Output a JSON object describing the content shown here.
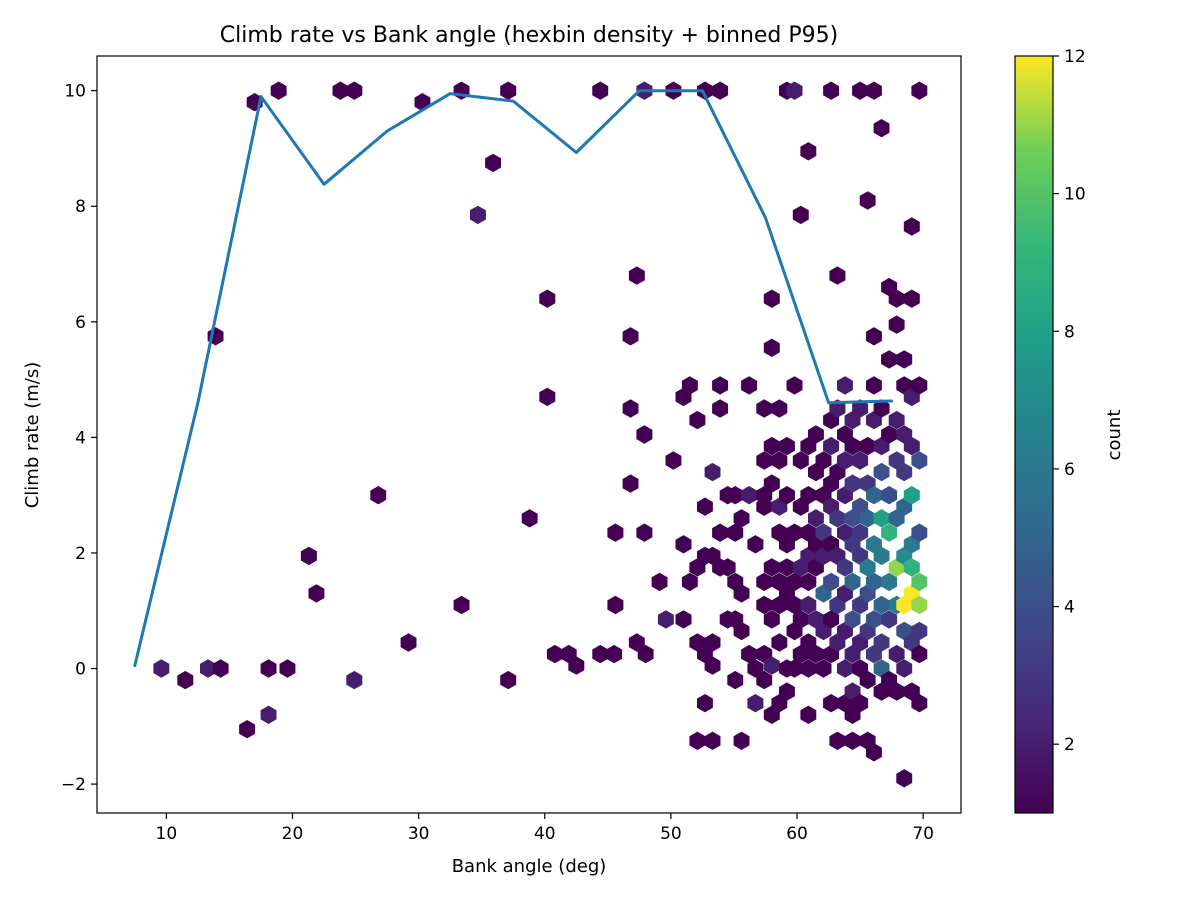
{
  "chart_data": {
    "type": "scatter",
    "title": "Climb rate vs Bank angle (hexbin density + binned P95)",
    "xlabel": "Bank angle (deg)",
    "ylabel": "Climb rate (m/s)",
    "xlim": [
      4.5,
      73
    ],
    "ylim": [
      -2.5,
      10.6
    ],
    "xticks": [
      10,
      20,
      30,
      40,
      50,
      60,
      70
    ],
    "yticks": [
      -2,
      0,
      2,
      4,
      6,
      8,
      10
    ],
    "colorbar": {
      "label": "count",
      "min": 1,
      "max": 12,
      "ticks": [
        2,
        4,
        6,
        8,
        10,
        12
      ],
      "colormap": "viridis"
    },
    "hex_cells": [
      [
        9.6,
        0.0,
        2
      ],
      [
        11.5,
        -0.2,
        1
      ],
      [
        13.3,
        0.0,
        2
      ],
      [
        14.3,
        0.0,
        1
      ],
      [
        13.9,
        5.75,
        1
      ],
      [
        16.4,
        -1.05,
        1
      ],
      [
        17.0,
        9.8,
        1
      ],
      [
        18.1,
        0.0,
        1
      ],
      [
        18.1,
        -0.8,
        2
      ],
      [
        18.9,
        10.0,
        1
      ],
      [
        19.6,
        0.0,
        1
      ],
      [
        21.3,
        1.95,
        1
      ],
      [
        21.9,
        1.3,
        1
      ],
      [
        23.8,
        10.0,
        1
      ],
      [
        24.9,
        10.0,
        1
      ],
      [
        24.9,
        -0.2,
        2
      ],
      [
        26.8,
        3.0,
        1
      ],
      [
        29.2,
        0.45,
        1
      ],
      [
        30.3,
        9.8,
        1
      ],
      [
        33.4,
        10.0,
        1
      ],
      [
        33.4,
        1.1,
        1
      ],
      [
        34.7,
        7.85,
        2
      ],
      [
        35.9,
        8.75,
        1
      ],
      [
        37.1,
        10.0,
        1
      ],
      [
        37.1,
        -0.2,
        1
      ],
      [
        38.8,
        2.6,
        1
      ],
      [
        40.2,
        6.4,
        1
      ],
      [
        40.2,
        4.7,
        1
      ],
      [
        40.8,
        0.25,
        1
      ],
      [
        41.9,
        0.25,
        1
      ],
      [
        42.5,
        0.05,
        1
      ],
      [
        44.4,
        10.0,
        1
      ],
      [
        44.4,
        0.25,
        1
      ],
      [
        45.5,
        0.25,
        1
      ],
      [
        45.6,
        2.35,
        1
      ],
      [
        45.6,
        1.1,
        1
      ],
      [
        46.8,
        5.75,
        1
      ],
      [
        46.8,
        4.5,
        1
      ],
      [
        46.8,
        3.2,
        1
      ],
      [
        47.3,
        6.8,
        1
      ],
      [
        47.3,
        0.45,
        1
      ],
      [
        47.9,
        10.0,
        2
      ],
      [
        47.9,
        4.05,
        1
      ],
      [
        47.9,
        2.35,
        1
      ],
      [
        48.0,
        0.25,
        1
      ],
      [
        49.1,
        1.5,
        1
      ],
      [
        49.6,
        0.85,
        2
      ],
      [
        50.2,
        10.0,
        1
      ],
      [
        50.2,
        3.6,
        1
      ],
      [
        51.0,
        0.85,
        1
      ],
      [
        51.0,
        4.7,
        1
      ],
      [
        51.0,
        2.15,
        1
      ],
      [
        51.5,
        4.9,
        1
      ],
      [
        51.5,
        1.5,
        1
      ],
      [
        52.1,
        4.3,
        1
      ],
      [
        52.1,
        1.75,
        1
      ],
      [
        52.1,
        0.45,
        1
      ],
      [
        52.1,
        -1.25,
        1
      ],
      [
        52.7,
        10.0,
        1
      ],
      [
        52.7,
        2.8,
        1
      ],
      [
        52.7,
        1.95,
        1
      ],
      [
        52.7,
        0.25,
        1
      ],
      [
        52.7,
        -0.6,
        1
      ],
      [
        53.3,
        3.4,
        2
      ],
      [
        53.3,
        1.95,
        1
      ],
      [
        53.3,
        0.45,
        1
      ],
      [
        53.3,
        0.05,
        1
      ],
      [
        53.3,
        -1.25,
        1
      ],
      [
        53.9,
        10.0,
        1
      ],
      [
        53.9,
        4.9,
        1
      ],
      [
        53.9,
        4.5,
        1
      ],
      [
        53.9,
        2.35,
        1
      ],
      [
        53.9,
        1.75,
        1
      ],
      [
        54.5,
        3.0,
        1
      ],
      [
        54.5,
        1.75,
        1
      ],
      [
        54.5,
        0.85,
        1
      ],
      [
        55.1,
        3.0,
        1
      ],
      [
        55.1,
        2.35,
        1
      ],
      [
        55.1,
        1.5,
        1
      ],
      [
        55.1,
        0.85,
        1
      ],
      [
        55.1,
        -0.2,
        1
      ],
      [
        55.6,
        2.6,
        1
      ],
      [
        55.6,
        1.3,
        1
      ],
      [
        55.6,
        0.65,
        1
      ],
      [
        55.6,
        -1.25,
        1
      ],
      [
        56.2,
        4.9,
        1
      ],
      [
        56.2,
        3.0,
        2
      ],
      [
        56.2,
        0.25,
        1
      ],
      [
        56.7,
        2.15,
        1
      ],
      [
        56.7,
        0.0,
        1
      ],
      [
        56.7,
        -0.6,
        2
      ],
      [
        57.4,
        4.5,
        1
      ],
      [
        57.4,
        3.6,
        1
      ],
      [
        57.4,
        3.0,
        1
      ],
      [
        57.4,
        2.8,
        1
      ],
      [
        57.4,
        1.5,
        1
      ],
      [
        57.4,
        1.1,
        1
      ],
      [
        57.4,
        0.25,
        1
      ],
      [
        57.4,
        -0.2,
        1
      ],
      [
        58.0,
        6.4,
        1
      ],
      [
        58.0,
        5.55,
        1
      ],
      [
        58.0,
        3.85,
        1
      ],
      [
        58.0,
        3.2,
        1
      ],
      [
        58.0,
        1.75,
        1
      ],
      [
        58.0,
        0.85,
        1
      ],
      [
        58.0,
        0.05,
        2
      ],
      [
        58.0,
        -0.8,
        1
      ],
      [
        58.6,
        4.5,
        1
      ],
      [
        58.6,
        3.6,
        1
      ],
      [
        58.6,
        2.8,
        2
      ],
      [
        58.6,
        2.35,
        1
      ],
      [
        58.6,
        1.5,
        1
      ],
      [
        58.6,
        1.1,
        1
      ],
      [
        58.6,
        0.45,
        1
      ],
      [
        58.6,
        -0.6,
        1
      ],
      [
        59.2,
        10.0,
        1
      ],
      [
        59.2,
        3.85,
        1
      ],
      [
        59.2,
        3.0,
        1
      ],
      [
        59.2,
        2.15,
        1
      ],
      [
        59.2,
        1.75,
        1
      ],
      [
        59.2,
        1.3,
        1
      ],
      [
        59.2,
        0.0,
        1
      ],
      [
        59.2,
        -0.4,
        1
      ],
      [
        59.8,
        10.0,
        2
      ],
      [
        59.8,
        4.9,
        1
      ],
      [
        59.8,
        2.35,
        1
      ],
      [
        59.8,
        1.5,
        1
      ],
      [
        59.8,
        1.1,
        1
      ],
      [
        59.8,
        0.65,
        1
      ],
      [
        59.8,
        0.0,
        1
      ],
      [
        60.3,
        7.85,
        1
      ],
      [
        60.3,
        3.6,
        1
      ],
      [
        60.3,
        2.8,
        1
      ],
      [
        60.3,
        1.75,
        2
      ],
      [
        60.3,
        0.85,
        1
      ],
      [
        60.3,
        0.25,
        1
      ],
      [
        60.9,
        8.95,
        1
      ],
      [
        60.9,
        3.85,
        1
      ],
      [
        60.9,
        3.0,
        1
      ],
      [
        60.9,
        2.35,
        1
      ],
      [
        60.9,
        1.95,
        2
      ],
      [
        60.9,
        1.5,
        1
      ],
      [
        60.9,
        1.1,
        2
      ],
      [
        60.9,
        0.45,
        1
      ],
      [
        60.9,
        0.0,
        1
      ],
      [
        60.9,
        -0.8,
        1
      ],
      [
        61.5,
        4.05,
        1
      ],
      [
        61.5,
        3.4,
        1
      ],
      [
        61.5,
        2.6,
        2
      ],
      [
        61.5,
        2.15,
        1
      ],
      [
        61.5,
        1.75,
        1
      ],
      [
        61.5,
        0.85,
        2
      ],
      [
        61.5,
        0.25,
        1
      ],
      [
        62.1,
        3.6,
        1
      ],
      [
        62.1,
        3.0,
        1
      ],
      [
        62.1,
        2.35,
        3
      ],
      [
        62.1,
        1.95,
        2
      ],
      [
        62.1,
        1.3,
        5
      ],
      [
        62.1,
        0.65,
        2
      ],
      [
        62.1,
        0.0,
        1
      ],
      [
        62.7,
        10.0,
        1
      ],
      [
        62.7,
        4.3,
        1
      ],
      [
        62.7,
        3.85,
        2
      ],
      [
        62.7,
        3.2,
        1
      ],
      [
        62.7,
        2.8,
        2
      ],
      [
        62.7,
        2.15,
        1
      ],
      [
        62.7,
        1.5,
        4
      ],
      [
        62.7,
        0.85,
        1
      ],
      [
        62.7,
        0.25,
        1
      ],
      [
        62.7,
        -0.6,
        1
      ],
      [
        63.2,
        6.8,
        1
      ],
      [
        63.2,
        4.5,
        2
      ],
      [
        63.2,
        3.4,
        1
      ],
      [
        63.2,
        2.6,
        3
      ],
      [
        63.2,
        1.95,
        2
      ],
      [
        63.2,
        1.1,
        3
      ],
      [
        63.2,
        0.45,
        2
      ],
      [
        63.2,
        -1.25,
        1
      ],
      [
        63.8,
        4.9,
        2
      ],
      [
        63.8,
        4.05,
        1
      ],
      [
        63.8,
        3.6,
        2
      ],
      [
        63.8,
        3.0,
        2
      ],
      [
        63.8,
        2.35,
        2
      ],
      [
        63.8,
        1.75,
        3
      ],
      [
        63.8,
        1.3,
        2
      ],
      [
        63.8,
        0.65,
        2
      ],
      [
        63.8,
        0.0,
        2
      ],
      [
        63.8,
        -0.6,
        1
      ],
      [
        64.4,
        4.3,
        2
      ],
      [
        64.4,
        3.85,
        1
      ],
      [
        64.4,
        3.2,
        3
      ],
      [
        64.4,
        2.6,
        4
      ],
      [
        64.4,
        2.15,
        3
      ],
      [
        64.4,
        1.5,
        5
      ],
      [
        64.4,
        0.85,
        4
      ],
      [
        64.4,
        0.25,
        2
      ],
      [
        64.4,
        -0.4,
        2
      ],
      [
        64.4,
        -0.8,
        1
      ],
      [
        64.4,
        -1.25,
        1
      ],
      [
        65.0,
        10.0,
        1
      ],
      [
        65.0,
        4.5,
        2
      ],
      [
        65.0,
        3.6,
        2
      ],
      [
        65.0,
        2.8,
        4
      ],
      [
        65.0,
        2.35,
        3
      ],
      [
        65.0,
        1.95,
        3
      ],
      [
        65.0,
        1.1,
        3
      ],
      [
        65.0,
        0.45,
        2
      ],
      [
        65.0,
        0.0,
        1
      ],
      [
        65.0,
        -0.6,
        1
      ],
      [
        65.6,
        8.1,
        1
      ],
      [
        65.6,
        3.85,
        1
      ],
      [
        65.6,
        3.2,
        3
      ],
      [
        65.6,
        2.6,
        5
      ],
      [
        65.6,
        1.75,
        6
      ],
      [
        65.6,
        1.3,
        4
      ],
      [
        65.6,
        0.65,
        3
      ],
      [
        65.6,
        -0.2,
        1
      ],
      [
        65.6,
        -1.25,
        1
      ],
      [
        66.1,
        10.0,
        1
      ],
      [
        66.1,
        5.75,
        1
      ],
      [
        66.1,
        4.9,
        1
      ],
      [
        66.1,
        4.3,
        2
      ],
      [
        66.1,
        3.0,
        5
      ],
      [
        66.1,
        2.15,
        6
      ],
      [
        66.1,
        1.5,
        5
      ],
      [
        66.1,
        0.85,
        4
      ],
      [
        66.1,
        0.25,
        3
      ],
      [
        66.1,
        -1.45,
        1
      ],
      [
        66.7,
        9.35,
        1
      ],
      [
        66.7,
        4.5,
        1
      ],
      [
        66.7,
        3.85,
        2
      ],
      [
        66.7,
        3.4,
        4
      ],
      [
        66.7,
        2.6,
        8
      ],
      [
        66.7,
        1.95,
        6
      ],
      [
        66.7,
        1.1,
        5
      ],
      [
        66.7,
        0.45,
        3
      ],
      [
        66.7,
        0.0,
        5
      ],
      [
        66.7,
        -0.4,
        1
      ],
      [
        67.3,
        6.6,
        1
      ],
      [
        67.3,
        5.35,
        1
      ],
      [
        67.3,
        4.05,
        1
      ],
      [
        67.3,
        3.0,
        4
      ],
      [
        67.3,
        2.35,
        9
      ],
      [
        67.3,
        1.5,
        6
      ],
      [
        67.3,
        0.85,
        3
      ],
      [
        67.3,
        -0.2,
        1
      ],
      [
        67.9,
        6.4,
        1
      ],
      [
        67.9,
        5.95,
        1
      ],
      [
        67.9,
        4.3,
        2
      ],
      [
        67.9,
        3.6,
        3
      ],
      [
        67.9,
        2.6,
        5
      ],
      [
        67.9,
        1.75,
        11
      ],
      [
        67.9,
        1.1,
        6
      ],
      [
        67.9,
        0.25,
        2
      ],
      [
        67.9,
        -0.4,
        1
      ],
      [
        68.5,
        4.9,
        1
      ],
      [
        68.5,
        5.35,
        1
      ],
      [
        68.5,
        4.05,
        2
      ],
      [
        68.5,
        3.4,
        3
      ],
      [
        68.5,
        2.8,
        5
      ],
      [
        68.5,
        1.95,
        7
      ],
      [
        68.5,
        1.1,
        12
      ],
      [
        68.5,
        0.65,
        4
      ],
      [
        68.5,
        0.0,
        2
      ],
      [
        68.5,
        -1.9,
        1
      ],
      [
        69.1,
        7.65,
        1
      ],
      [
        69.1,
        6.4,
        1
      ],
      [
        69.1,
        4.7,
        2
      ],
      [
        69.1,
        3.85,
        2
      ],
      [
        69.1,
        3.0,
        8
      ],
      [
        69.1,
        2.15,
        6
      ],
      [
        69.1,
        1.75,
        9
      ],
      [
        69.1,
        1.3,
        12
      ],
      [
        69.1,
        0.45,
        3
      ],
      [
        69.1,
        -0.4,
        1
      ],
      [
        69.7,
        10.0,
        1
      ],
      [
        69.7,
        4.9,
        1
      ],
      [
        69.7,
        3.6,
        4
      ],
      [
        69.7,
        2.35,
        4
      ],
      [
        69.7,
        1.5,
        10
      ],
      [
        69.7,
        1.1,
        11
      ],
      [
        69.7,
        0.65,
        3
      ],
      [
        69.7,
        0.25,
        1
      ],
      [
        69.7,
        -0.6,
        1
      ]
    ],
    "series": [
      {
        "x": [
          7.5,
          12.5,
          17.5,
          22.5,
          27.5,
          32.5,
          37.5,
          42.5,
          47.5,
          52.5,
          57.5,
          62.5,
          67.5
        ],
        "y": [
          0.05,
          4.6,
          9.9,
          8.38,
          9.3,
          9.95,
          9.82,
          8.93,
          10.0,
          10.0,
          7.8,
          4.6,
          4.63
        ],
        "color": "#1f77b4"
      }
    ]
  }
}
